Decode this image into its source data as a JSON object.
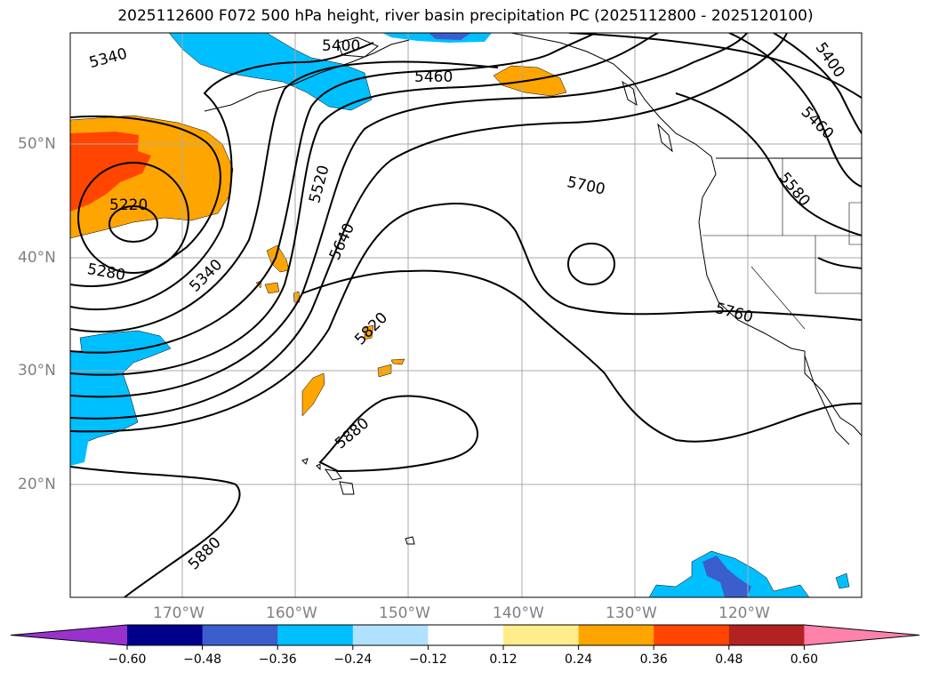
{
  "title": "2025112600 F072 500 hPa height, river basin precipitation PC (2025112800 - 2025120100)",
  "lat_labels": [
    "50°N",
    "40°N",
    "30°N",
    "20°N"
  ],
  "lon_labels": [
    "170°W",
    "160°W",
    "150°W",
    "140°W",
    "130°W",
    "120°W"
  ],
  "contour_labels": [
    "5340",
    "5400",
    "5460",
    "5400",
    "5460",
    "5580",
    "5220",
    "5280",
    "5340",
    "5520",
    "5640",
    "5700",
    "5760",
    "5820",
    "5880",
    "5880"
  ],
  "colorbar": {
    "ticks": [
      "−0.60",
      "−0.48",
      "−0.36",
      "−0.24",
      "−0.12",
      "0.12",
      "0.24",
      "0.36",
      "0.48",
      "0.60"
    ],
    "colors": [
      "#9932cc",
      "#00008b",
      "#3a5fcd",
      "#00bfff",
      "#b0e2ff",
      "#ffffff",
      "#ffec8b",
      "#ffa500",
      "#ff4500",
      "#b22222",
      "#ff82ab"
    ]
  },
  "colors": {
    "orange": "#ffa500",
    "red_orange": "#ff4500",
    "sky_blue": "#00bfff",
    "royal_blue": "#3a5fcd"
  }
}
